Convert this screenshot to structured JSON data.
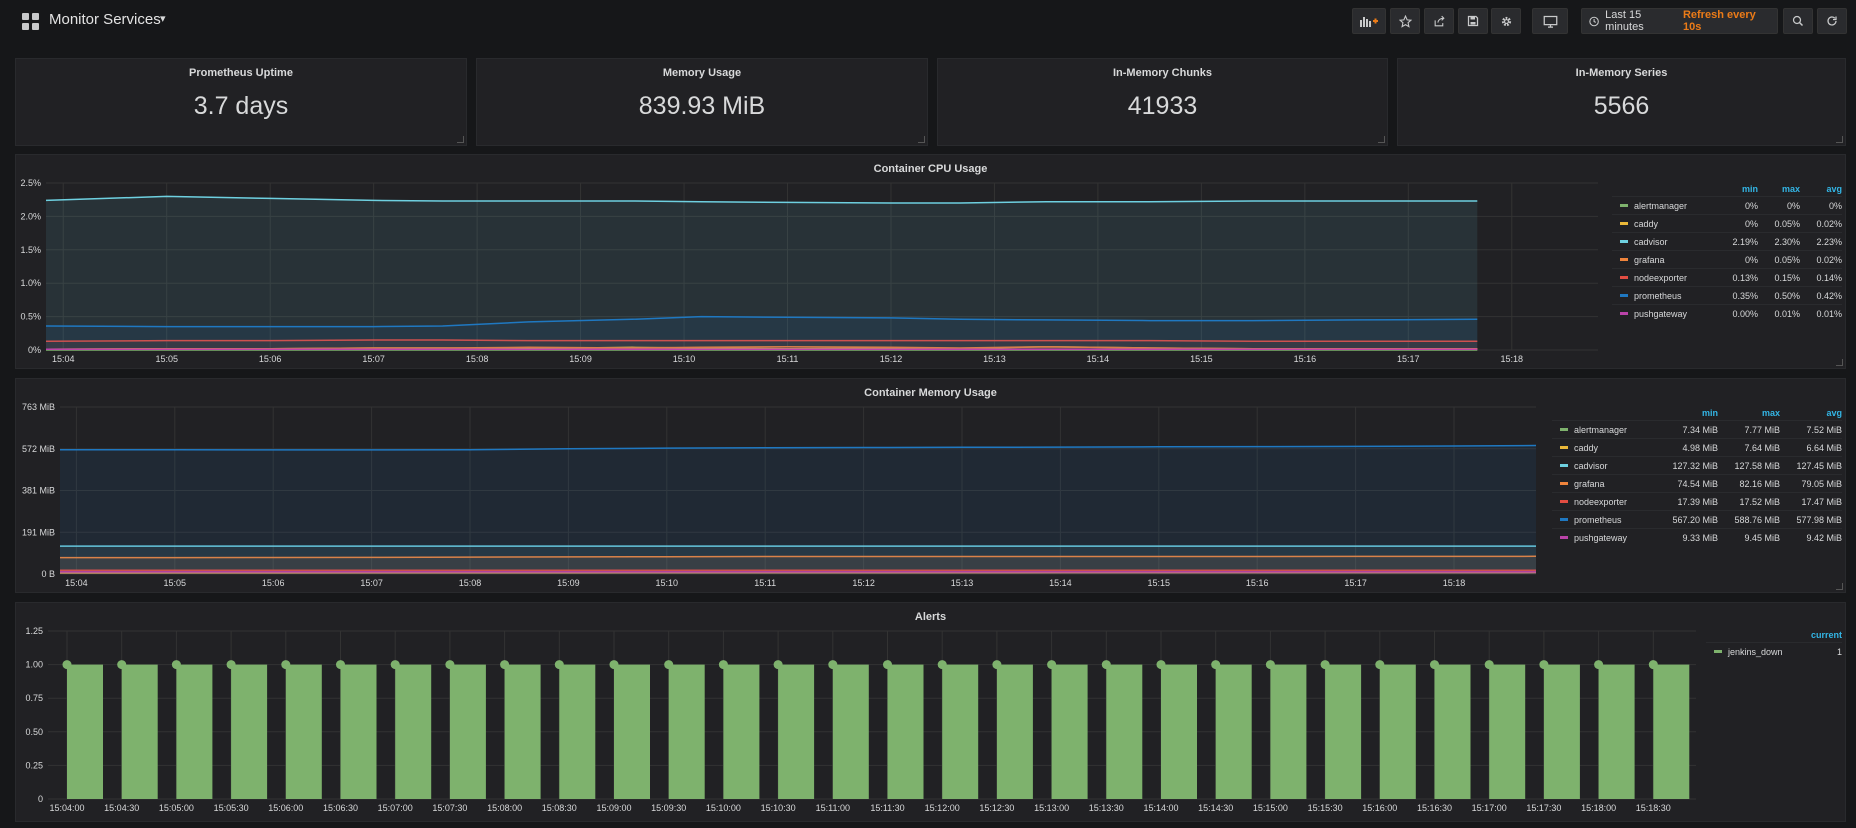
{
  "header": {
    "title": "Monitor Services",
    "time_range": "Last 15 minutes",
    "refresh": "Refresh every 10s"
  },
  "stats": [
    {
      "title": "Prometheus Uptime",
      "value": "3.7 days"
    },
    {
      "title": "Memory Usage",
      "value": "839.93 MiB"
    },
    {
      "title": "In-Memory Chunks",
      "value": "41933"
    },
    {
      "title": "In-Memory Series",
      "value": "5566"
    }
  ],
  "colors": {
    "alertmanager": "#7eb26d",
    "caddy": "#eab839",
    "cadvisor": "#6ed0e0",
    "grafana": "#ef843c",
    "nodeexporter": "#e24d42",
    "prometheus": "#1f78c1",
    "pushgateway": "#ba43a9"
  },
  "cpu": {
    "title": "Container CPU Usage",
    "legend_headers": [
      "min",
      "max",
      "avg"
    ],
    "legend": [
      {
        "name": "alertmanager",
        "min": "0%",
        "max": "0%",
        "avg": "0%"
      },
      {
        "name": "caddy",
        "min": "0%",
        "max": "0.05%",
        "avg": "0.02%"
      },
      {
        "name": "cadvisor",
        "min": "2.19%",
        "max": "2.30%",
        "avg": "2.23%"
      },
      {
        "name": "grafana",
        "min": "0%",
        "max": "0.05%",
        "avg": "0.02%"
      },
      {
        "name": "nodeexporter",
        "min": "0.13%",
        "max": "0.15%",
        "avg": "0.14%"
      },
      {
        "name": "prometheus",
        "min": "0.35%",
        "max": "0.50%",
        "avg": "0.42%"
      },
      {
        "name": "pushgateway",
        "min": "0.00%",
        "max": "0.01%",
        "avg": "0.01%"
      }
    ]
  },
  "memory": {
    "title": "Container Memory Usage",
    "legend_headers": [
      "min",
      "max",
      "avg"
    ],
    "legend": [
      {
        "name": "alertmanager",
        "min": "7.34 MiB",
        "max": "7.77 MiB",
        "avg": "7.52 MiB"
      },
      {
        "name": "caddy",
        "min": "4.98 MiB",
        "max": "7.64 MiB",
        "avg": "6.64 MiB"
      },
      {
        "name": "cadvisor",
        "min": "127.32 MiB",
        "max": "127.58 MiB",
        "avg": "127.45 MiB"
      },
      {
        "name": "grafana",
        "min": "74.54 MiB",
        "max": "82.16 MiB",
        "avg": "79.05 MiB"
      },
      {
        "name": "nodeexporter",
        "min": "17.39 MiB",
        "max": "17.52 MiB",
        "avg": "17.47 MiB"
      },
      {
        "name": "prometheus",
        "min": "567.20 MiB",
        "max": "588.76 MiB",
        "avg": "577.98 MiB"
      },
      {
        "name": "pushgateway",
        "min": "9.33 MiB",
        "max": "9.45 MiB",
        "avg": "9.42 MiB"
      }
    ]
  },
  "alerts": {
    "title": "Alerts",
    "legend_header": "current",
    "legend": [
      {
        "name": "jenkins_down",
        "current": "1"
      }
    ]
  },
  "chart_data": [
    {
      "type": "line",
      "title": "Container CPU Usage",
      "xlabel": "",
      "ylabel": "",
      "x_ticks": [
        "15:04",
        "15:05",
        "15:06",
        "15:07",
        "15:08",
        "15:09",
        "15:10",
        "15:11",
        "15:12",
        "15:13",
        "15:14",
        "15:15",
        "15:16",
        "15:17",
        "15:18"
      ],
      "y_ticks": [
        "0%",
        "0.5%",
        "1.0%",
        "1.5%",
        "2.0%",
        "2.5%"
      ],
      "ylim": [
        0,
        2.5
      ],
      "xlim": [
        "15:03:50",
        "15:18:50"
      ],
      "x": [
        "15:03:50",
        "15:05:00",
        "15:06:00",
        "15:07:00",
        "15:07:40",
        "15:08:30",
        "15:09:30",
        "15:10:10",
        "15:11:00",
        "15:12:00",
        "15:12:40",
        "15:13:30",
        "15:14:30",
        "15:15:30",
        "15:16:30",
        "15:17:40"
      ],
      "series": [
        {
          "name": "alertmanager",
          "values": [
            0,
            0,
            0,
            0,
            0,
            0,
            0,
            0,
            0,
            0,
            0,
            0,
            0,
            0,
            0,
            0
          ]
        },
        {
          "name": "caddy",
          "values": [
            0.01,
            0.02,
            0.02,
            0.03,
            0.03,
            0.02,
            0.04,
            0.03,
            0.02,
            0.03,
            0.02,
            0.05,
            0.03,
            0.02,
            0.02,
            0.02
          ]
        },
        {
          "name": "cadvisor",
          "values": [
            2.24,
            2.3,
            2.27,
            2.24,
            2.23,
            2.23,
            2.23,
            2.22,
            2.21,
            2.2,
            2.2,
            2.22,
            2.22,
            2.23,
            2.23,
            2.23
          ]
        },
        {
          "name": "grafana",
          "values": [
            0.01,
            0.02,
            0.02,
            0.03,
            0.03,
            0.04,
            0.03,
            0.04,
            0.05,
            0.04,
            0.03,
            0.05,
            0.03,
            0.02,
            0.02,
            0.02
          ]
        },
        {
          "name": "nodeexporter",
          "values": [
            0.13,
            0.14,
            0.14,
            0.15,
            0.15,
            0.14,
            0.14,
            0.14,
            0.14,
            0.14,
            0.14,
            0.14,
            0.14,
            0.13,
            0.13,
            0.13
          ]
        },
        {
          "name": "prometheus",
          "values": [
            0.36,
            0.35,
            0.35,
            0.35,
            0.36,
            0.42,
            0.46,
            0.5,
            0.49,
            0.48,
            0.46,
            0.45,
            0.44,
            0.44,
            0.45,
            0.46
          ]
        },
        {
          "name": "pushgateway",
          "values": [
            0.01,
            0.01,
            0.01,
            0.01,
            0.01,
            0.01,
            0.01,
            0.01,
            0.01,
            0.01,
            0.01,
            0.01,
            0.01,
            0.01,
            0.01,
            0.01
          ]
        }
      ]
    },
    {
      "type": "line",
      "title": "Container Memory Usage",
      "xlabel": "",
      "ylabel": "",
      "x_ticks": [
        "15:04",
        "15:05",
        "15:06",
        "15:07",
        "15:08",
        "15:09",
        "15:10",
        "15:11",
        "15:12",
        "15:13",
        "15:14",
        "15:15",
        "15:16",
        "15:17",
        "15:18"
      ],
      "y_ticks": [
        "0 B",
        "191 MiB",
        "381 MiB",
        "572 MiB",
        "763 MiB"
      ],
      "ylim": [
        0,
        763
      ],
      "xlim": [
        "15:03:50",
        "15:18:50"
      ],
      "x": [
        "15:03:50",
        "15:05:00",
        "15:06:00",
        "15:07:00",
        "15:08:00",
        "15:09:00",
        "15:10:00",
        "15:11:00",
        "15:12:00",
        "15:13:00",
        "15:14:00",
        "15:15:00",
        "15:16:00",
        "15:17:00",
        "15:18:00",
        "15:18:50"
      ],
      "series": [
        {
          "name": "alertmanager",
          "values": [
            7.4,
            7.4,
            7.5,
            7.5,
            7.5,
            7.5,
            7.5,
            7.5,
            7.5,
            7.6,
            7.6,
            7.6,
            7.6,
            7.6,
            7.6,
            7.6
          ]
        },
        {
          "name": "caddy",
          "values": [
            5,
            5.5,
            6,
            6.5,
            6.6,
            6.6,
            6.7,
            6.8,
            6.9,
            7,
            7.1,
            7.2,
            7.3,
            7.4,
            7.5,
            7.6
          ]
        },
        {
          "name": "cadvisor",
          "values": [
            127.4,
            127.4,
            127.4,
            127.5,
            127.5,
            127.5,
            127.5,
            127.5,
            127.5,
            127.5,
            127.5,
            127.5,
            127.5,
            127.5,
            127.5,
            127.5
          ]
        },
        {
          "name": "grafana",
          "values": [
            75,
            75,
            75.5,
            76,
            77,
            78,
            79,
            80,
            80,
            80,
            80,
            80,
            80,
            80.5,
            80.5,
            81
          ]
        },
        {
          "name": "nodeexporter",
          "values": [
            17.4,
            17.4,
            17.4,
            17.5,
            17.5,
            17.5,
            17.5,
            17.5,
            17.5,
            17.5,
            17.5,
            17.5,
            17.5,
            17.5,
            17.5,
            17.5
          ]
        },
        {
          "name": "prometheus",
          "values": [
            568,
            568,
            567,
            567,
            568,
            572,
            575,
            577,
            578,
            579,
            580,
            581,
            582,
            583,
            585,
            587
          ]
        },
        {
          "name": "pushgateway",
          "values": [
            9.4,
            9.4,
            9.4,
            9.4,
            9.4,
            9.4,
            9.4,
            9.4,
            9.4,
            9.4,
            9.4,
            9.4,
            9.4,
            9.4,
            9.4,
            9.4
          ]
        }
      ]
    },
    {
      "type": "bar",
      "title": "Alerts",
      "xlabel": "",
      "ylabel": "",
      "y_ticks": [
        "0",
        "0.25",
        "0.50",
        "0.75",
        "1.00",
        "1.25"
      ],
      "ylim": [
        0,
        1.25
      ],
      "categories": [
        "15:04:00",
        "15:04:30",
        "15:05:00",
        "15:05:30",
        "15:06:00",
        "15:06:30",
        "15:07:00",
        "15:07:30",
        "15:08:00",
        "15:08:30",
        "15:09:00",
        "15:09:30",
        "15:10:00",
        "15:10:30",
        "15:11:00",
        "15:11:30",
        "15:12:00",
        "15:12:30",
        "15:13:00",
        "15:13:30",
        "15:14:00",
        "15:14:30",
        "15:15:00",
        "15:15:30",
        "15:16:00",
        "15:16:30",
        "15:17:00",
        "15:17:30",
        "15:18:00",
        "15:18:30"
      ],
      "series": [
        {
          "name": "jenkins_down",
          "values": [
            1,
            1,
            1,
            1,
            1,
            1,
            1,
            1,
            1,
            1,
            1,
            1,
            1,
            1,
            1,
            1,
            1,
            1,
            1,
            1,
            1,
            1,
            1,
            1,
            1,
            1,
            1,
            1,
            1,
            1
          ]
        }
      ]
    }
  ]
}
